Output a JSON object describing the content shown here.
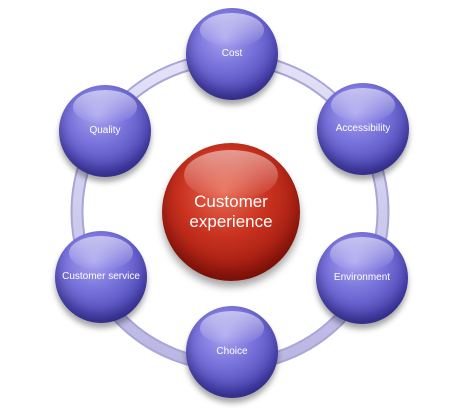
{
  "center": {
    "label": "Customer experience"
  },
  "nodes": [
    {
      "label": "Cost"
    },
    {
      "label": "Accessibility"
    },
    {
      "label": "Environment"
    },
    {
      "label": "Choice"
    },
    {
      "label": "Customer service"
    },
    {
      "label": "Quality"
    }
  ],
  "colors": {
    "satellite": "#5a54c4",
    "center": "#b8271a",
    "ring": "#c9c7ec"
  }
}
